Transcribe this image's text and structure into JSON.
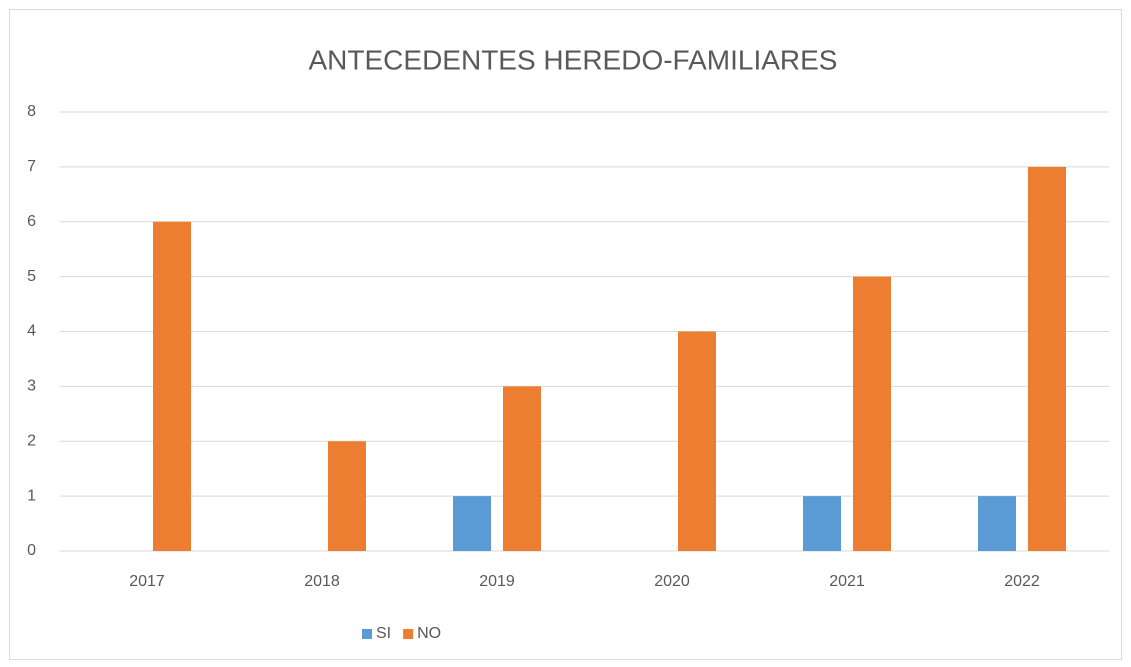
{
  "chart_data": {
    "type": "bar",
    "title": "ANTECEDENTES HEREDO-FAMILIARES",
    "categories": [
      "2017",
      "2018",
      "2019",
      "2020",
      "2021",
      "2022"
    ],
    "series": [
      {
        "name": "SI",
        "color": "#5b9bd5",
        "values": [
          0,
          0,
          1,
          0,
          1,
          1
        ]
      },
      {
        "name": "NO",
        "color": "#ed7d31",
        "values": [
          6,
          2,
          3,
          4,
          5,
          7
        ]
      }
    ],
    "ylim": [
      0,
      8
    ],
    "yticks": [
      0,
      1,
      2,
      3,
      4,
      5,
      6,
      7,
      8
    ],
    "grid": true,
    "legend": "bottom"
  }
}
